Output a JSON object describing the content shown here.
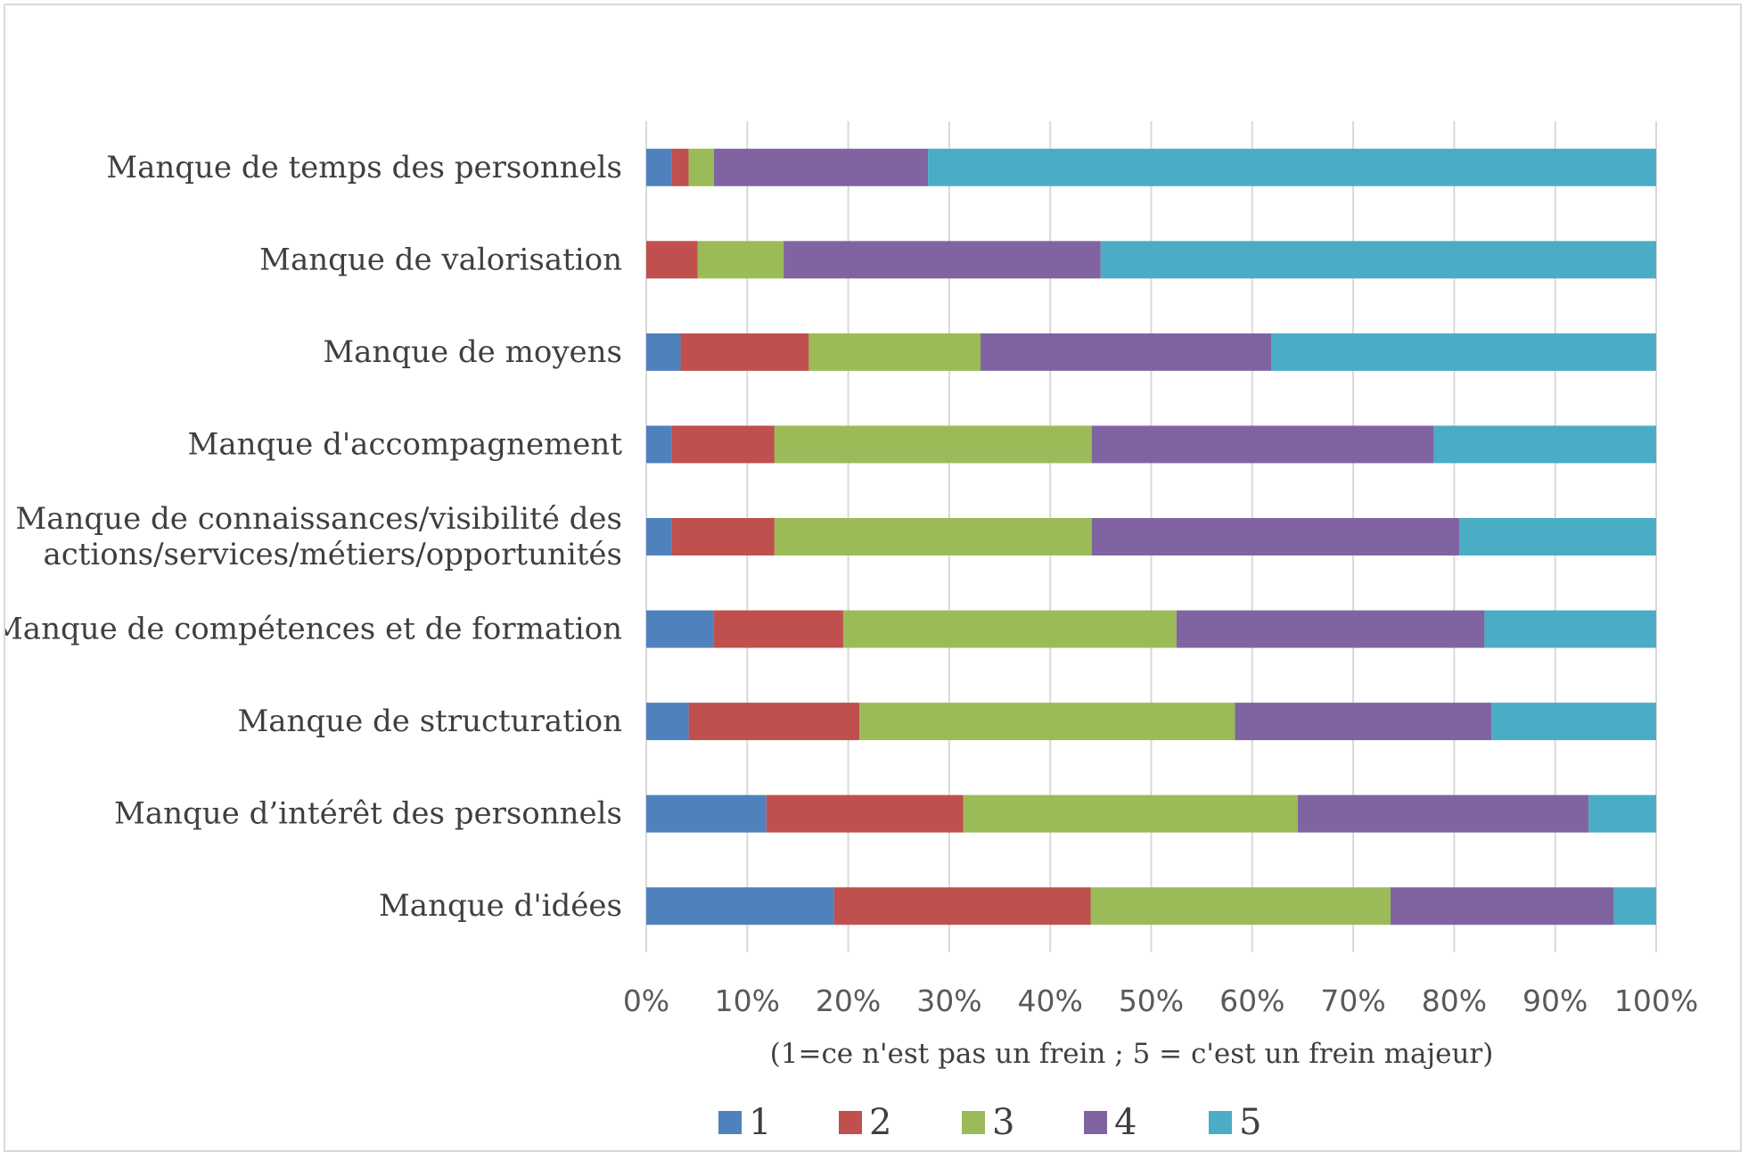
{
  "chart_data": {
    "type": "bar",
    "orientation": "horizontal",
    "stacked": "percent",
    "title": "",
    "xlabel": "(1=ce n'est pas un frein ; 5 = c'est un frein majeur)",
    "ylabel": "",
    "xlim": [
      0,
      100
    ],
    "x_ticks": [
      "0%",
      "10%",
      "20%",
      "30%",
      "40%",
      "50%",
      "60%",
      "70%",
      "80%",
      "90%",
      "100%"
    ],
    "grid": true,
    "legend_position": "bottom",
    "categories": [
      [
        "Manque de temps des personnels"
      ],
      [
        "Manque de valorisation"
      ],
      [
        "Manque de moyens"
      ],
      [
        "Manque d'accompagnement"
      ],
      [
        "Manque de connaissances/visibilité des",
        "actions/services/métiers/opportunités"
      ],
      [
        "Manque de compétences et de formation"
      ],
      [
        "Manque de structuration"
      ],
      [
        "Manque d’intérêt des personnels"
      ],
      [
        "Manque d'idées"
      ]
    ],
    "series": [
      {
        "name": "1",
        "color": "#4f81bd",
        "values": [
          2.5,
          0,
          3.4,
          2.5,
          2.5,
          6.7,
          4.2,
          11.9,
          18.6
        ]
      },
      {
        "name": "2",
        "color": "#c0504d",
        "values": [
          1.7,
          5.1,
          12.7,
          10.2,
          10.2,
          12.8,
          16.9,
          19.5,
          25.4
        ]
      },
      {
        "name": "3",
        "color": "#9bbb59",
        "values": [
          2.5,
          8.5,
          17.0,
          31.4,
          31.4,
          33.0,
          37.2,
          33.1,
          29.7
        ]
      },
      {
        "name": "4",
        "color": "#8064a2",
        "values": [
          21.2,
          31.4,
          28.8,
          33.9,
          36.4,
          30.5,
          25.4,
          28.8,
          22.1
        ]
      },
      {
        "name": "5",
        "color": "#4bacc6",
        "values": [
          72.1,
          55.0,
          38.1,
          22.0,
          19.5,
          17.0,
          16.3,
          6.7,
          4.2
        ]
      }
    ]
  }
}
